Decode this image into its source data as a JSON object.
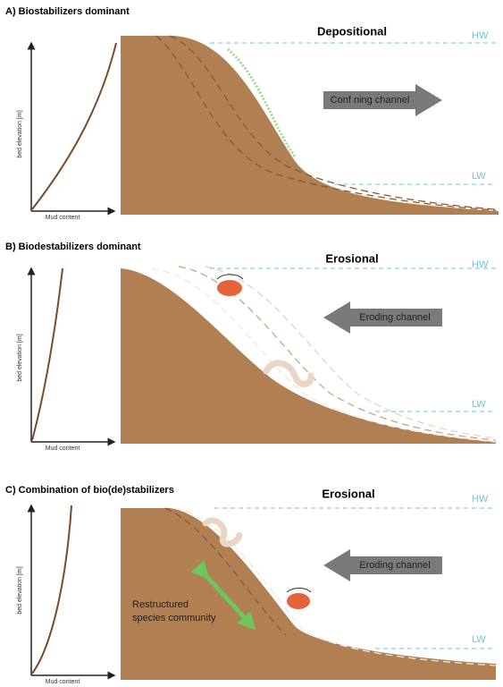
{
  "panels": [
    {
      "title": "A) Biostabilizers dominant",
      "process": "Depositional",
      "hw": "HW",
      "lw": "LW",
      "arrow": "Conf ning channel",
      "y_label": "bed elevation [m]",
      "x_label": "Mud content"
    },
    {
      "title": "B) Biodestabilizers dominant",
      "process": "Erosional",
      "hw": "HW",
      "lw": "LW",
      "arrow": "Eroding channel",
      "y_label": "bed elevation [m]",
      "x_label": "Mud content"
    },
    {
      "title": "C) Combination of bio(de)stabilizers",
      "process": "Erosional",
      "hw": "HW",
      "lw": "LW",
      "arrow": "Eroding channel",
      "y_label": "bed elevation [m]",
      "x_label": "Mud content",
      "note": [
        "Restructured",
        "species community"
      ]
    }
  ]
}
